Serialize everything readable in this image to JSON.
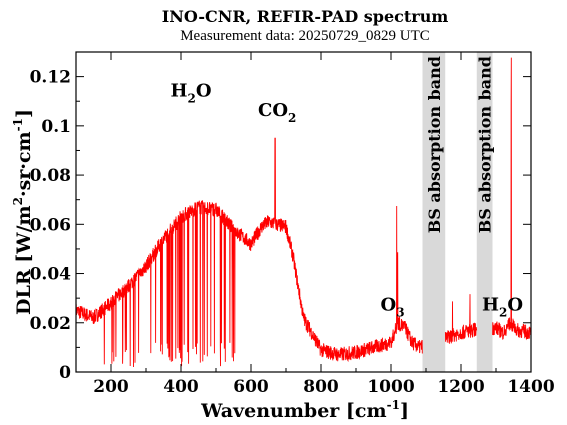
{
  "chart_data": {
    "type": "line",
    "title": "INO-CNR, REFIR-PAD spectrum",
    "subtitle": "Measurement data: 20250729_0829 UTC",
    "xlabel": "Wavenumber [cm-1]",
    "ylabel": "DLR [W/m2·sr·cm-1]",
    "xlim": [
      100,
      1400
    ],
    "ylim": [
      0,
      0.13
    ],
    "x_ticks": [
      200,
      400,
      600,
      800,
      1000,
      1200,
      1400
    ],
    "y_ticks": [
      0,
      0.02,
      0.04,
      0.06,
      0.08,
      0.1,
      0.12
    ],
    "line_color": "#ff0000",
    "band_color": "#d9d9d9",
    "absorption_bands": [
      {
        "x_start": 1090,
        "x_end": 1155,
        "label": "BS absorption band"
      },
      {
        "x_start": 1245,
        "x_end": 1290,
        "label": "BS absorption band"
      }
    ],
    "annotations": [
      {
        "text": "H2O",
        "x": 450,
        "y": 0.112
      },
      {
        "text": "CO2",
        "x": 700,
        "y": 0.104
      },
      {
        "text": "O3",
        "x": 1050,
        "y": 0.025
      },
      {
        "text": "H2O",
        "x": 1340,
        "y": 0.025
      }
    ],
    "series": [
      {
        "x": [
          100,
          150,
          200,
          250,
          300,
          350,
          400,
          450,
          500,
          550,
          600,
          630,
          650,
          670,
          700,
          720,
          750,
          800,
          850,
          900,
          950,
          1000,
          1020,
          1040,
          1060,
          1080,
          1160,
          1200,
          1230,
          1300,
          1320,
          1340,
          1360,
          1400
        ],
        "values": [
          0.025,
          0.022,
          0.028,
          0.035,
          0.043,
          0.054,
          0.063,
          0.067,
          0.066,
          0.058,
          0.052,
          0.059,
          0.061,
          0.06,
          0.059,
          0.047,
          0.022,
          0.009,
          0.007,
          0.008,
          0.01,
          0.012,
          0.02,
          0.018,
          0.012,
          0.01,
          0.014,
          0.016,
          0.017,
          0.018,
          0.016,
          0.02,
          0.017,
          0.016
        ]
      }
    ]
  }
}
